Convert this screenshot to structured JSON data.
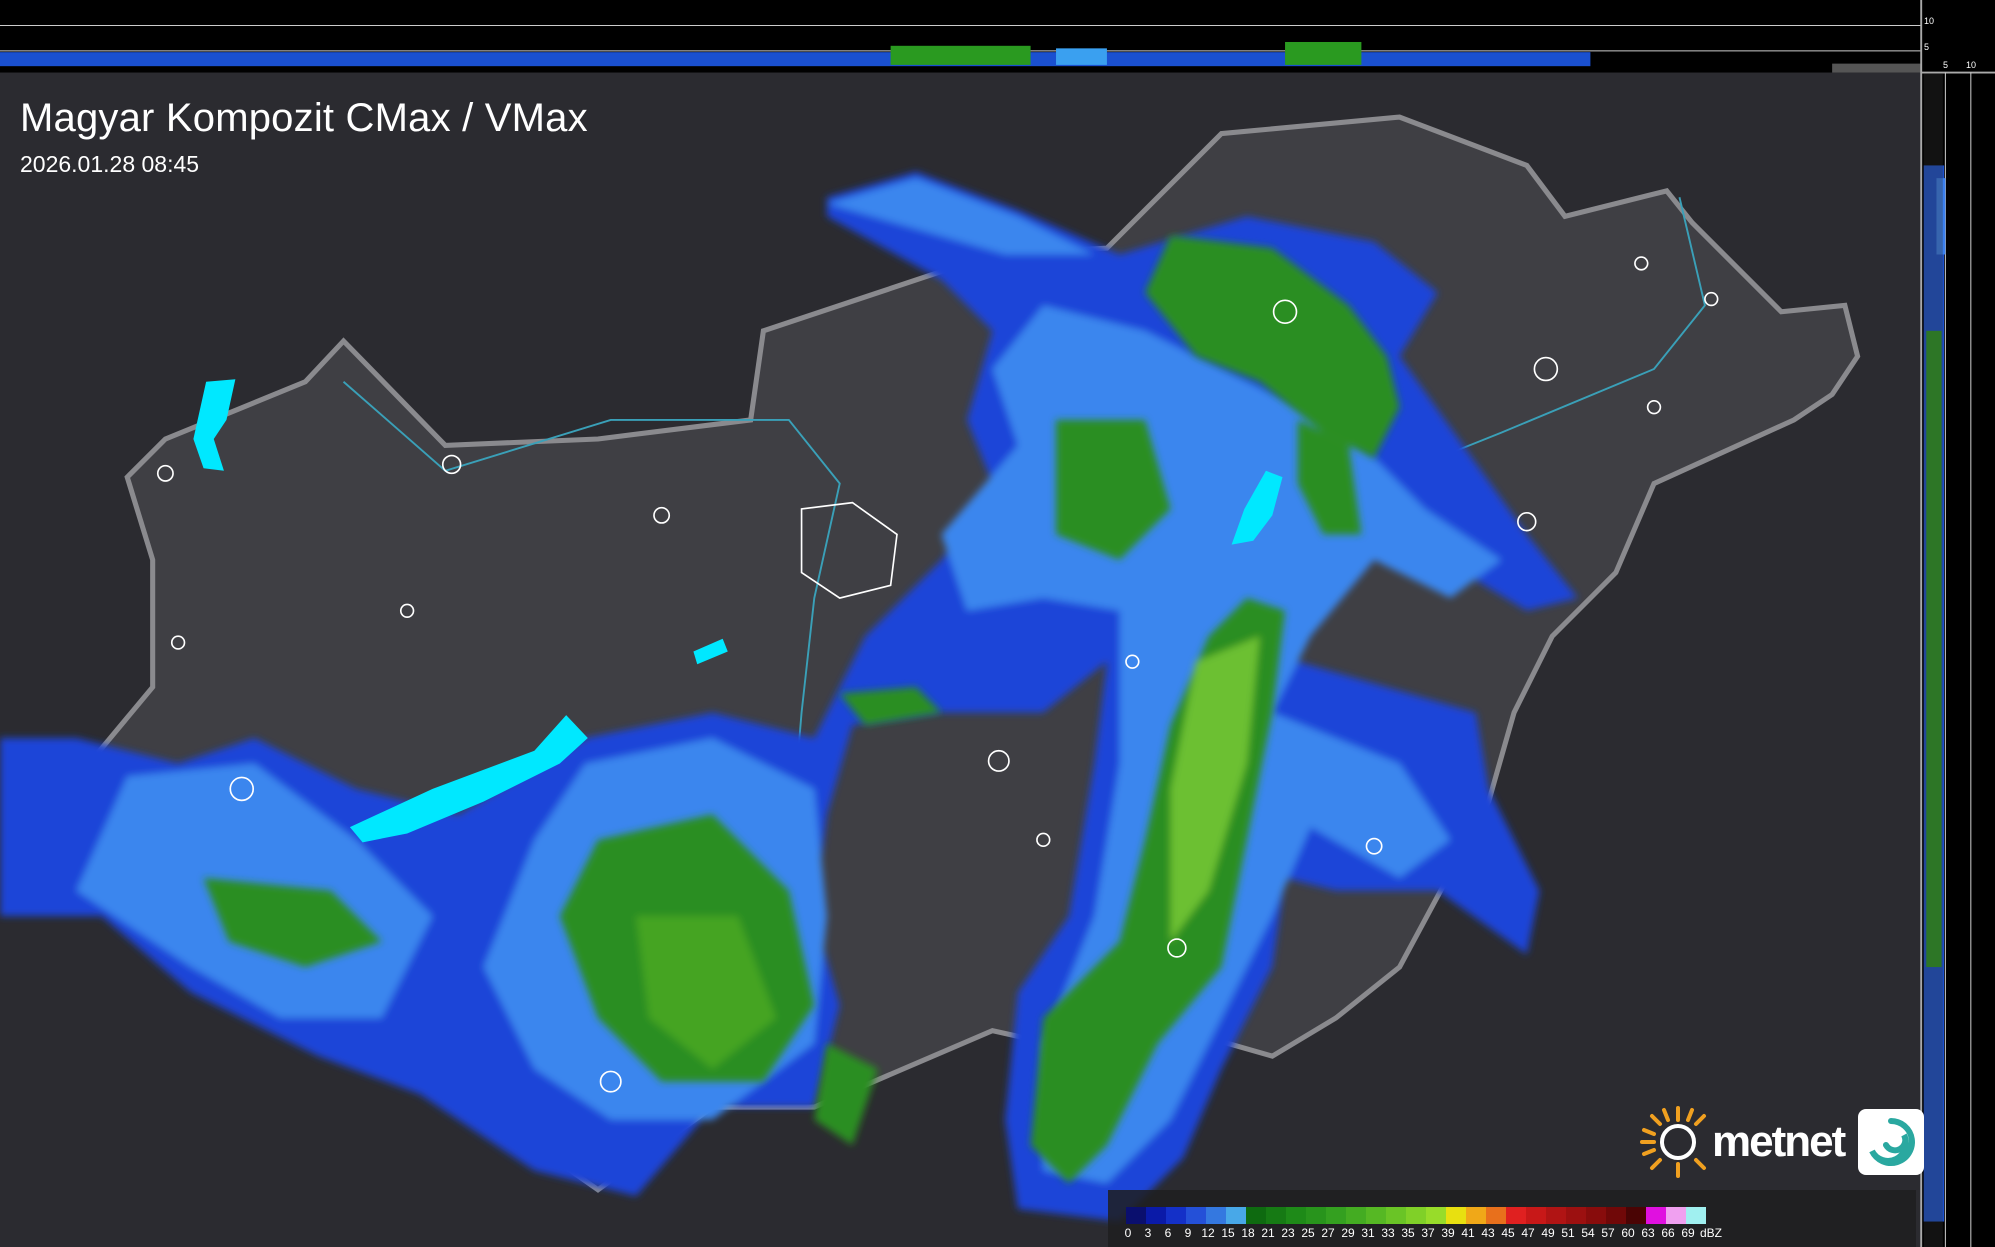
{
  "header": {
    "title": "Magyar Kompozit CMax / VMax",
    "timestamp": "2026.01.28 08:45"
  },
  "profile_axes": {
    "top_ticks": [
      "10",
      "5"
    ],
    "right_ticks": [
      "5",
      "10"
    ]
  },
  "legend": {
    "unit": "dBZ",
    "labels": [
      "0",
      "3",
      "6",
      "9",
      "12",
      "15",
      "18",
      "21",
      "23",
      "25",
      "27",
      "29",
      "31",
      "33",
      "35",
      "37",
      "39",
      "41",
      "43",
      "45",
      "47",
      "49",
      "51",
      "54",
      "57",
      "60",
      "63",
      "66",
      "69"
    ],
    "colors": [
      "#0a0f6e",
      "#0a1aa8",
      "#1430c8",
      "#2450d8",
      "#3478e0",
      "#48a8e8",
      "#0e6a10",
      "#167a14",
      "#1e8a18",
      "#28941c",
      "#34a020",
      "#44ac22",
      "#56b824",
      "#6ac426",
      "#80d028",
      "#98dc2a",
      "#e8e010",
      "#f0a818",
      "#e8701c",
      "#e02020",
      "#c81818",
      "#b01414",
      "#9c1010",
      "#880c0c",
      "#700808",
      "#4a0404",
      "#e010e0",
      "#f0a0f0",
      "#a0f0f0"
    ]
  },
  "logo": {
    "brand": "metnet",
    "colors": {
      "sun": "#f0a020",
      "swirl": "#2aa8a0"
    }
  },
  "map": {
    "background": "#2a2a2e",
    "border_color": "#8a8a8e",
    "river_color": "#3aa0b8",
    "lake_color": "#00e8ff"
  }
}
